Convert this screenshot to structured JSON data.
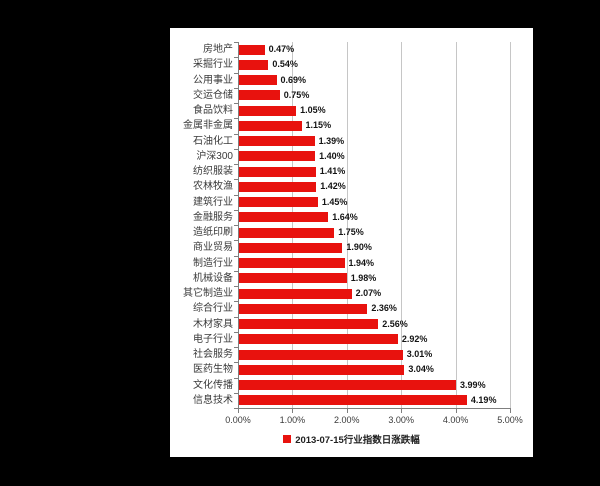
{
  "chart_data": {
    "type": "bar",
    "orientation": "horizontal",
    "title": "",
    "categories": [
      "房地产",
      "采掘行业",
      "公用事业",
      "交运仓储",
      "食品饮料",
      "金属非金属",
      "石油化工",
      "沪深300",
      "纺织服装",
      "农林牧渔",
      "建筑行业",
      "金融服务",
      "造纸印刷",
      "商业贸易",
      "制造行业",
      "机械设备",
      "其它制造业",
      "综合行业",
      "木材家具",
      "电子行业",
      "社会服务",
      "医药生物",
      "文化传播",
      "信息技术"
    ],
    "values": [
      0.47,
      0.54,
      0.69,
      0.75,
      1.05,
      1.15,
      1.39,
      1.4,
      1.41,
      1.42,
      1.45,
      1.64,
      1.75,
      1.9,
      1.94,
      1.98,
      2.07,
      2.36,
      2.56,
      2.92,
      3.01,
      3.04,
      3.99,
      4.19
    ],
    "value_labels": [
      "0.47%",
      "0.54%",
      "0.69%",
      "0.75%",
      "1.05%",
      "1.15%",
      "1.39%",
      "1.40%",
      "1.41%",
      "1.42%",
      "1.45%",
      "1.64%",
      "1.75%",
      "1.90%",
      "1.94%",
      "1.98%",
      "2.07%",
      "2.36%",
      "2.56%",
      "2.92%",
      "3.01%",
      "3.04%",
      "3.99%",
      "4.19%"
    ],
    "x_ticks": [
      "0.00%",
      "1.00%",
      "2.00%",
      "3.00%",
      "4.00%",
      "5.00%"
    ],
    "xlim": [
      0,
      5
    ],
    "grid": "vertical-major",
    "legend_position": "bottom-center",
    "legend": {
      "label": "2013-07-15行业指数日涨跌幅",
      "swatch_color": "#e8120e"
    }
  },
  "colors": {
    "background": "#000000",
    "panel": "#ffffff",
    "bar": "#e8120e",
    "gridline": "#c6c6c6",
    "axis": "#7f7f7f"
  }
}
